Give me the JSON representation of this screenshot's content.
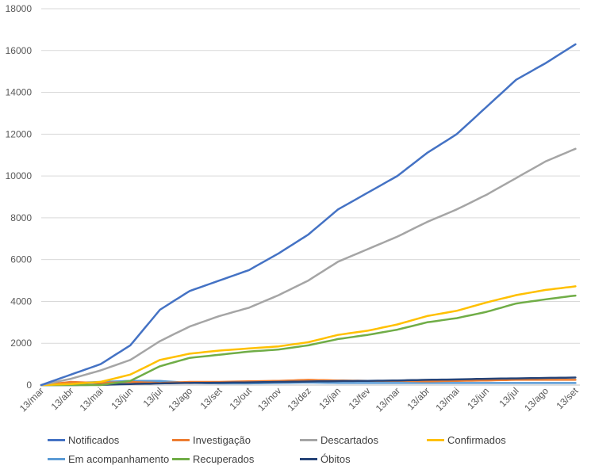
{
  "chart_data": {
    "type": "line",
    "title": "",
    "xlabel": "",
    "ylabel": "",
    "ylim": [
      0,
      18000
    ],
    "yticks": [
      0,
      2000,
      4000,
      6000,
      8000,
      10000,
      12000,
      14000,
      16000,
      18000
    ],
    "grid": true,
    "legend_position": "bottom",
    "categories": [
      "13/mar",
      "13/abr",
      "13/mai",
      "13/jun",
      "13/jul",
      "13/ago",
      "13/set",
      "13/out",
      "13/nov",
      "13/dez",
      "13/jan",
      "13/fev",
      "13/mar",
      "13/abr",
      "13/mai",
      "13/jun",
      "13/jul",
      "13/ago",
      "13/set"
    ],
    "series": [
      {
        "name": "Notificados",
        "color": "#4472C4",
        "values": [
          0,
          500,
          1000,
          1900,
          3600,
          4500,
          5000,
          5500,
          6300,
          7200,
          8400,
          9200,
          10000,
          11100,
          12000,
          13300,
          14600,
          15400,
          16300
        ]
      },
      {
        "name": "Investigação",
        "color": "#ED7D31",
        "values": [
          0,
          150,
          100,
          150,
          100,
          150,
          150,
          180,
          200,
          250,
          220,
          200,
          200,
          180,
          200,
          220,
          250,
          250,
          250
        ]
      },
      {
        "name": "Descartados",
        "color": "#A5A5A5",
        "values": [
          0,
          300,
          700,
          1200,
          2100,
          2800,
          3300,
          3700,
          4300,
          5000,
          5900,
          6500,
          7100,
          7800,
          8400,
          9100,
          9900,
          10700,
          11300
        ]
      },
      {
        "name": "Confirmados",
        "color": "#FFC000",
        "values": [
          0,
          50,
          150,
          500,
          1200,
          1500,
          1650,
          1750,
          1850,
          2050,
          2400,
          2600,
          2900,
          3300,
          3550,
          3950,
          4300,
          4550,
          4720
        ]
      },
      {
        "name": "Em acompanhamento",
        "color": "#5B9BD5",
        "values": [
          0,
          100,
          150,
          200,
          200,
          100,
          80,
          80,
          100,
          120,
          100,
          100,
          100,
          100,
          100,
          100,
          100,
          100,
          100
        ]
      },
      {
        "name": "Recuperados",
        "color": "#70AD47",
        "values": [
          0,
          0,
          0,
          200,
          900,
          1300,
          1450,
          1600,
          1700,
          1900,
          2200,
          2400,
          2650,
          3000,
          3200,
          3500,
          3900,
          4100,
          4280
        ]
      },
      {
        "name": "Óbitos",
        "color": "#264478",
        "values": [
          0,
          0,
          10,
          50,
          80,
          100,
          110,
          130,
          150,
          170,
          190,
          200,
          220,
          250,
          270,
          300,
          320,
          340,
          360
        ]
      }
    ]
  }
}
